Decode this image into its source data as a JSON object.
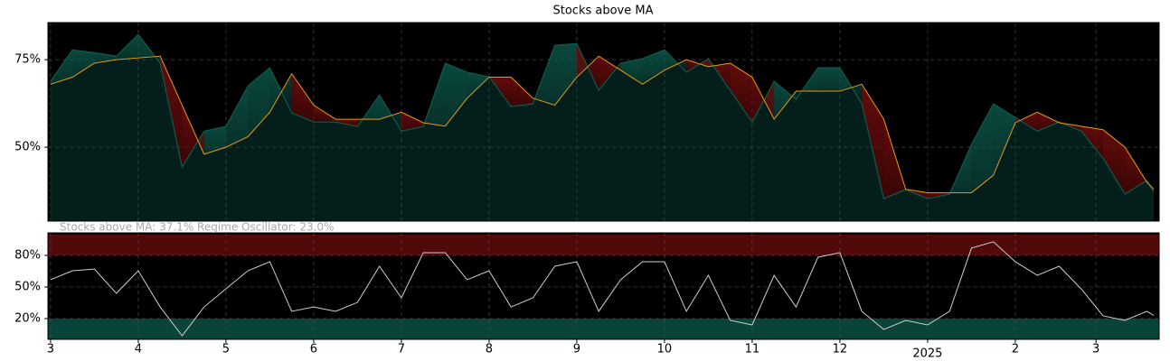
{
  "chart_data": [
    {
      "type": "line",
      "title": "Stocks above MA",
      "x": [
        0,
        0.25,
        0.5,
        0.75,
        1,
        1.25,
        1.5,
        1.75,
        2,
        2.25,
        2.5,
        2.75,
        3,
        3.25,
        3.5,
        3.75,
        4,
        4.25,
        4.5,
        4.75,
        5,
        5.25,
        5.5,
        5.75,
        6,
        6.25,
        6.5,
        6.75,
        7,
        7.25,
        7.5,
        7.75,
        8,
        8.25,
        8.5,
        8.75,
        9,
        9.25,
        9.5,
        9.75,
        10,
        10.25,
        10.5,
        10.75,
        11,
        11.25,
        11.5,
        11.75,
        12,
        12.25,
        12.5,
        12.58
      ],
      "series": [
        {
          "name": "Stocks above MA",
          "color": "#0f5a4a",
          "values": [
            68.8,
            77.8,
            77,
            76,
            82.2,
            74,
            44.3,
            54.6,
            55.9,
            67.5,
            72.7,
            59.8,
            57.2,
            57.2,
            55.9,
            64.9,
            54.6,
            55.9,
            74,
            71.4,
            70.1,
            61.6,
            62.4,
            79.1,
            79.6,
            66.2,
            74,
            75.3,
            77.8,
            71.4,
            75.3,
            66.2,
            57.2,
            68.8,
            63.7,
            72.7,
            72.7,
            62.4,
            35.3,
            37.9,
            35.3,
            36.6,
            50.8,
            62.4,
            58.5,
            54.6,
            57.2,
            54.6,
            46.9,
            36.6,
            40.5,
            37.1
          ]
        },
        {
          "name": "MA",
          "color": "#e69a12",
          "values": [
            68,
            70,
            74,
            75,
            75.5,
            76,
            62,
            48,
            50,
            53,
            60,
            71,
            62,
            58,
            58,
            58,
            60,
            57,
            56,
            64,
            70,
            70,
            64,
            62,
            70,
            76,
            72,
            68,
            72,
            75,
            73,
            74,
            70,
            58,
            66,
            66,
            66,
            68,
            58,
            38,
            37,
            37,
            37,
            42,
            57,
            60,
            57,
            56,
            55,
            50,
            40,
            38
          ]
        }
      ],
      "xlim": [
        -0.03,
        12.64
      ],
      "ylim": [
        28.9,
        85.6
      ],
      "yticks": [
        {
          "value": 50,
          "label": "50%"
        },
        {
          "value": 75,
          "label": "75%"
        }
      ],
      "grid": true
    },
    {
      "type": "line",
      "annotation": "Stocks above MA: 37.1%   Regime Oscillator: 23.0%",
      "x": [
        0,
        0.25,
        0.5,
        0.75,
        1,
        1.25,
        1.5,
        1.75,
        2,
        2.25,
        2.5,
        2.75,
        3,
        3.25,
        3.5,
        3.75,
        4,
        4.25,
        4.5,
        4.75,
        5,
        5.25,
        5.5,
        5.75,
        6,
        6.25,
        6.5,
        6.75,
        7,
        7.25,
        7.5,
        7.75,
        8,
        8.25,
        8.5,
        8.75,
        9,
        9.25,
        9.5,
        9.75,
        10,
        10.25,
        10.5,
        10.75,
        11,
        11.25,
        11.5,
        11.75,
        12,
        12.25,
        12.5,
        12.58
      ],
      "series": [
        {
          "name": "Regime Oscillator",
          "color": "#cfcfcf",
          "values": [
            56.9,
            65.4,
            67,
            44,
            65.4,
            31,
            3.7,
            31,
            48.3,
            65.4,
            74,
            26.9,
            31,
            26.9,
            35.4,
            69.7,
            39.7,
            82.6,
            82.6,
            56.9,
            65.4,
            31,
            39.7,
            69.7,
            74,
            26.9,
            56.9,
            74,
            74,
            26.9,
            61.1,
            18.3,
            14,
            61.1,
            31,
            78.3,
            82.6,
            26.9,
            9.7,
            18.3,
            14,
            26.9,
            86.9,
            92.9,
            74,
            61.1,
            69.7,
            48.3,
            22.6,
            18.3,
            26.9,
            23.0
          ]
        }
      ],
      "bands": [
        {
          "from": 80,
          "to": 100,
          "color": "#6e0c0c"
        },
        {
          "from": 0,
          "to": 20,
          "color": "#0c5a4c"
        }
      ],
      "xlim": [
        -0.03,
        12.64
      ],
      "ylim": [
        0.3,
        101.4
      ],
      "xticks": [
        {
          "value": 0,
          "label": "3"
        },
        {
          "value": 1,
          "label": "4"
        },
        {
          "value": 2,
          "label": "5"
        },
        {
          "value": 3,
          "label": "6"
        },
        {
          "value": 4,
          "label": "7"
        },
        {
          "value": 5,
          "label": "8"
        },
        {
          "value": 6,
          "label": "9"
        },
        {
          "value": 7,
          "label": "10"
        },
        {
          "value": 8,
          "label": "11"
        },
        {
          "value": 9,
          "label": "12"
        },
        {
          "value": 10,
          "label": "2025"
        },
        {
          "value": 11,
          "label": "2"
        },
        {
          "value": 11.92,
          "label": "3"
        }
      ],
      "yticks": [
        {
          "value": 20,
          "label": "20%"
        },
        {
          "value": 50,
          "label": "50%"
        },
        {
          "value": 80,
          "label": "80%"
        }
      ],
      "grid": true
    }
  ]
}
